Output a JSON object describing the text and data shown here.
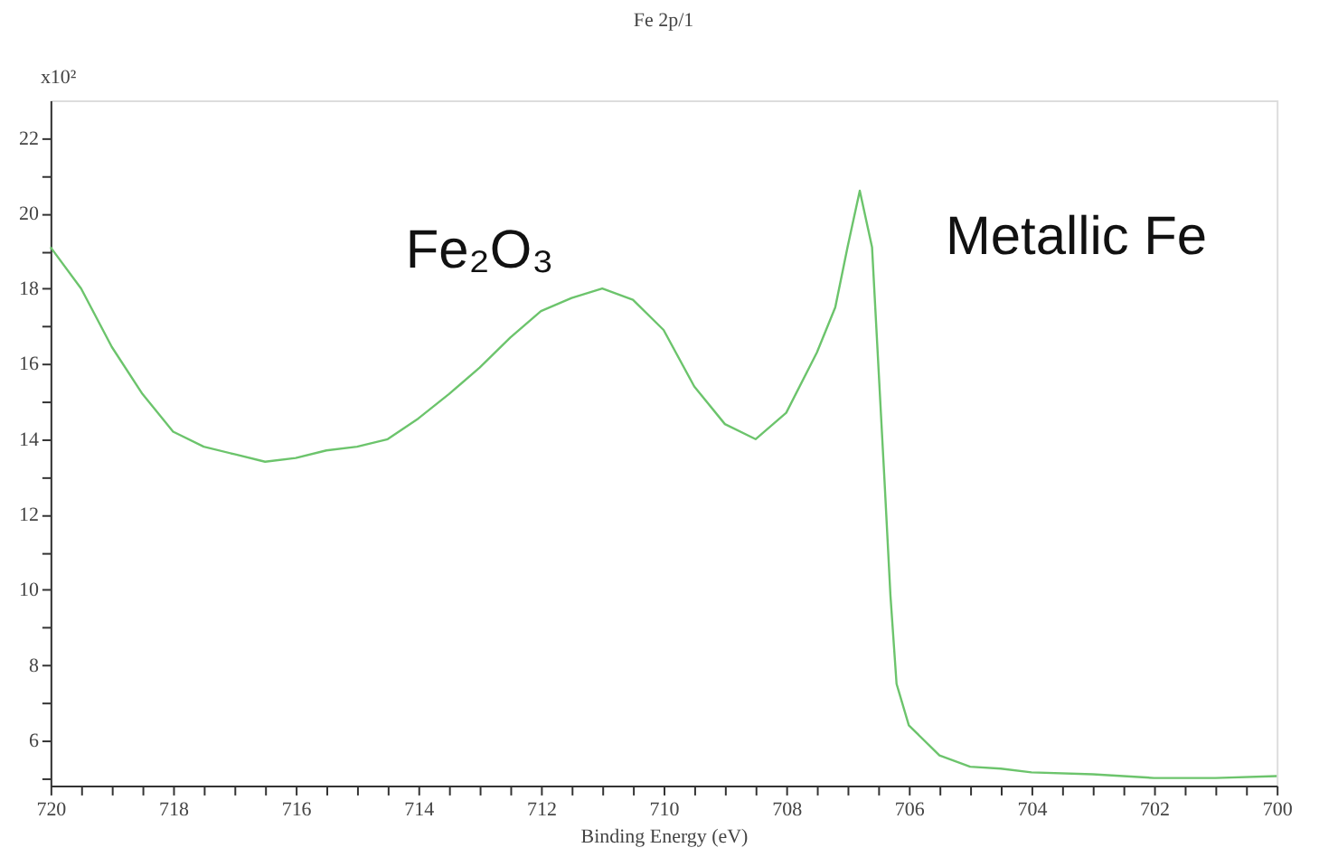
{
  "chart_data": {
    "type": "line",
    "title": "Fe 2p/1",
    "xlabel": "Binding Energy (eV)",
    "ylabel": "x10²",
    "annotations": [
      "Fe₂O₃",
      "Metallic Fe"
    ],
    "x": [
      720,
      719.5,
      719,
      718.5,
      718,
      717.5,
      717,
      716.5,
      716,
      715.5,
      715,
      714.5,
      714,
      713.5,
      713,
      712.5,
      712,
      711.5,
      711,
      710.5,
      710,
      709.5,
      709,
      708.5,
      708,
      707.5,
      707.2,
      707,
      706.8,
      706.6,
      706.4,
      706.3,
      706.2,
      706,
      705.5,
      705,
      704.5,
      704,
      703,
      702,
      701,
      700
    ],
    "series": [
      {
        "color": "#6cc46c",
        "values": [
          19.1,
          18.0,
          16.45,
          15.2,
          14.2,
          13.8,
          13.6,
          13.4,
          13.5,
          13.7,
          13.8,
          14.0,
          14.55,
          15.2,
          15.9,
          16.7,
          17.4,
          17.75,
          18.0,
          17.7,
          16.9,
          15.4,
          14.4,
          14.0,
          14.7,
          16.3,
          17.5,
          19.1,
          20.6,
          19.1,
          13.0,
          9.85,
          7.5,
          6.4,
          5.6,
          5.3,
          5.25,
          5.15,
          5.1,
          5.0,
          5.0,
          5.05
        ]
      }
    ],
    "xlim": [
      720,
      700
    ],
    "xticks": [
      720,
      {
        "value": 719.5,
        "label": null
      },
      {
        "value": 719,
        "label": null
      },
      {
        "value": 718.5,
        "label": null
      },
      718,
      {
        "value": 717.5,
        "label": null
      },
      {
        "value": 717,
        "label": null
      },
      {
        "value": 716.5,
        "label": null
      },
      716,
      {
        "value": 715.5,
        "label": null
      },
      {
        "value": 715,
        "label": null
      },
      {
        "value": 714.5,
        "label": null
      },
      714,
      {
        "value": 713.5,
        "label": null
      },
      {
        "value": 713,
        "label": null
      },
      {
        "value": 712.5,
        "label": null
      },
      712,
      {
        "value": 711.5,
        "label": null
      },
      {
        "value": 711,
        "label": null
      },
      {
        "value": 710.5,
        "label": null
      },
      710,
      {
        "value": 709.5,
        "label": null
      },
      {
        "value": 709,
        "label": null
      },
      {
        "value": 708.5,
        "label": null
      },
      708,
      {
        "value": 707.5,
        "label": null
      },
      {
        "value": 707,
        "label": null
      },
      {
        "value": 706.5,
        "label": null
      },
      706,
      {
        "value": 705.5,
        "label": null
      },
      {
        "value": 705,
        "label": null
      },
      {
        "value": 704.5,
        "label": null
      },
      704,
      {
        "value": 703.5,
        "label": null
      },
      {
        "value": 703,
        "label": null
      },
      {
        "value": 702.5,
        "label": null
      },
      702,
      {
        "value": 701.5,
        "label": null
      },
      {
        "value": 701,
        "label": null
      },
      {
        "value": 700.5,
        "label": null
      },
      700
    ],
    "ylim": [
      4.8,
      23
    ],
    "yticks": [
      {
        "value": 5,
        "label": null
      },
      6,
      {
        "value": 7,
        "label": null
      },
      8,
      {
        "value": 9,
        "label": null
      },
      10,
      {
        "value": 11,
        "label": null
      },
      12,
      {
        "value": 13,
        "label": null
      },
      14,
      {
        "value": 15,
        "label": null
      },
      16,
      {
        "value": 17,
        "label": null
      },
      18,
      {
        "value": 19,
        "label": null
      },
      20,
      {
        "value": 21,
        "label": null
      },
      22
    ],
    "grid": false,
    "marker": "none",
    "line_style": "solid"
  }
}
